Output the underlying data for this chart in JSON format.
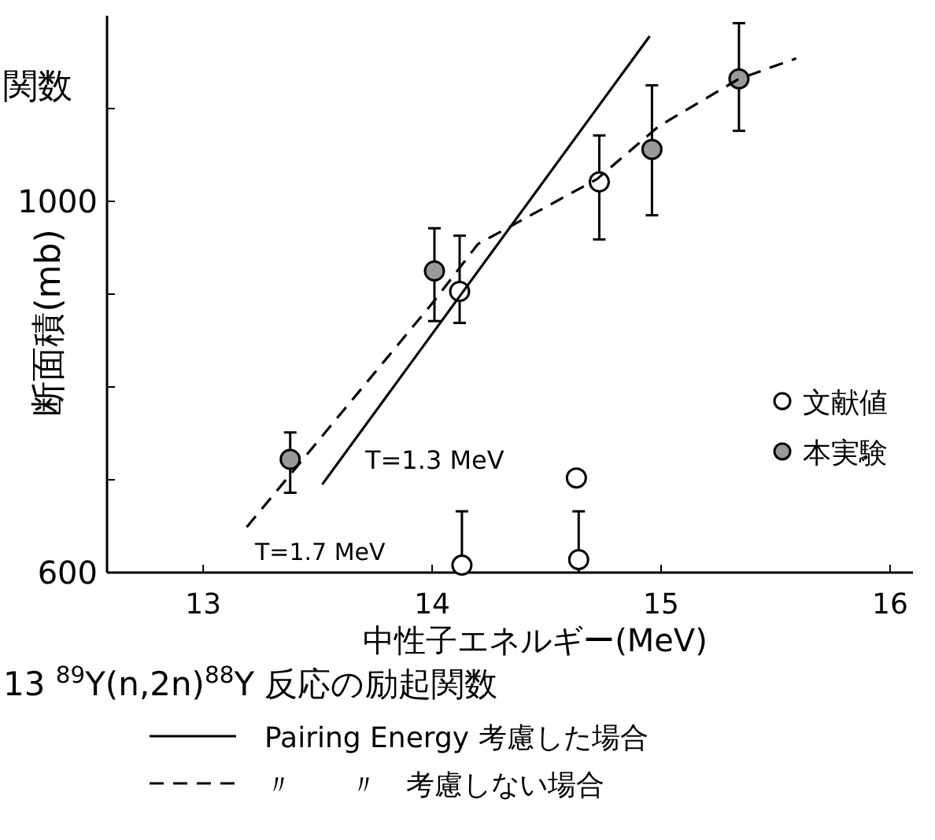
{
  "chart_data": {
    "type": "scatter",
    "title": "13 $^{89}$Y(n,2n)$^{88}$Y 反応の励起関数",
    "xlabel": "中性子エネルギー(MeV)",
    "ylabel": "断面積(mb)",
    "xlim": [
      12.58,
      16.1
    ],
    "ylim": [
      600,
      1200
    ],
    "xticks": [
      13,
      14,
      15,
      16
    ],
    "yticks": [
      600,
      {
        "value": 700,
        "label": null
      },
      {
        "value": 800,
        "label": null
      },
      {
        "value": 900,
        "label": null
      },
      1000,
      {
        "value": 1100,
        "label": null
      }
    ],
    "marker": "circle",
    "legend": "right",
    "grid": false,
    "series": [
      {
        "name": "文献値",
        "color": "#ffffff",
        "x": [
          14.12,
          14.73,
          14.63,
          14.13,
          14.64
        ],
        "values": [
          903,
          1021,
          702,
          608,
          614
        ],
        "errors": [
          [
            869,
            963
          ],
          [
            959,
            1071
          ],
          null,
          [
            600,
            666
          ],
          [
            600,
            666
          ]
        ]
      },
      {
        "name": "本実験",
        "color": "#999999",
        "x": [
          13.38,
          14.01,
          14.96,
          15.34
        ],
        "values": [
          722,
          925,
          1056,
          1132
        ],
        "errors": [
          [
            686,
            751
          ],
          [
            871,
            971
          ],
          [
            985,
            1125
          ],
          [
            1076,
            1192
          ]
        ]
      },
      {
        "name": "Pairing Energy 考慮した場合",
        "type": "line",
        "line_style": "solid",
        "marker": "none",
        "color": "#000000",
        "x": [
          13.52,
          14.95
        ],
        "values": [
          695,
          1178
        ]
      },
      {
        "name": "〃　　〃　考慮しない場合",
        "type": "line",
        "line_style": "dashed",
        "marker": "none",
        "color": "#000000",
        "x": [
          13.19,
          14.0,
          14.2,
          14.72,
          14.99,
          15.34,
          15.59
        ],
        "values": [
          649,
          890,
          954,
          1024,
          1081,
          1132,
          1154
        ]
      }
    ],
    "annotations": [
      "T=1.3 MeV",
      "T=1.7 MeV",
      "関数"
    ]
  }
}
